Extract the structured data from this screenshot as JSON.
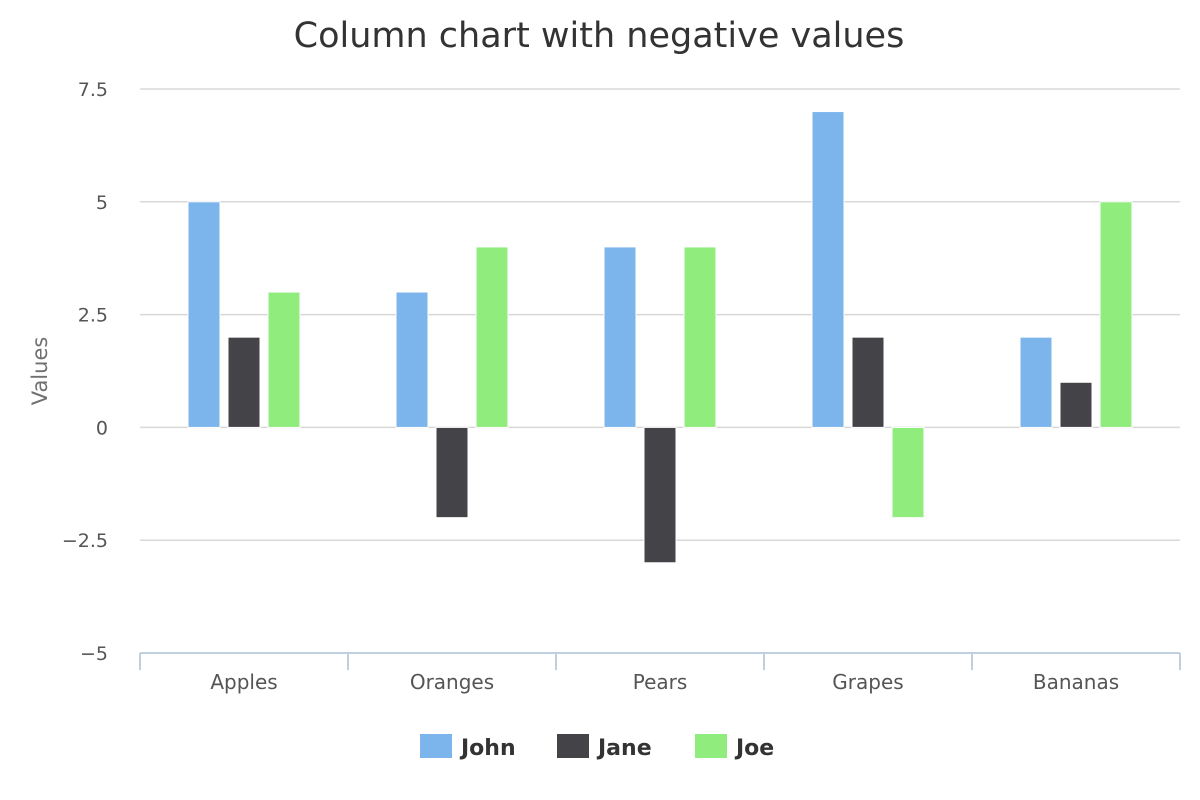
{
  "chart_data": {
    "type": "bar",
    "title": "Column chart with negative values",
    "ylabel": "Values",
    "xlabel": "",
    "categories": [
      "Apples",
      "Oranges",
      "Pears",
      "Grapes",
      "Bananas"
    ],
    "series": [
      {
        "name": "John",
        "color": "#7cb5ec",
        "values": [
          5,
          3,
          4,
          7,
          2
        ]
      },
      {
        "name": "Jane",
        "color": "#434348",
        "values": [
          2,
          -2,
          -3,
          2,
          1
        ]
      },
      {
        "name": "Joe",
        "color": "#90ed7d",
        "values": [
          3,
          4,
          4,
          -2,
          5
        ]
      }
    ],
    "ylim": [
      -5,
      7.5
    ],
    "yticks": [
      -5,
      -2.5,
      0,
      2.5,
      5,
      7.5
    ],
    "ytick_labels": [
      "−5",
      "−2.5",
      "0",
      "2.5",
      "5",
      "7.5"
    ],
    "grid": true,
    "legend_position": "bottom-center"
  }
}
